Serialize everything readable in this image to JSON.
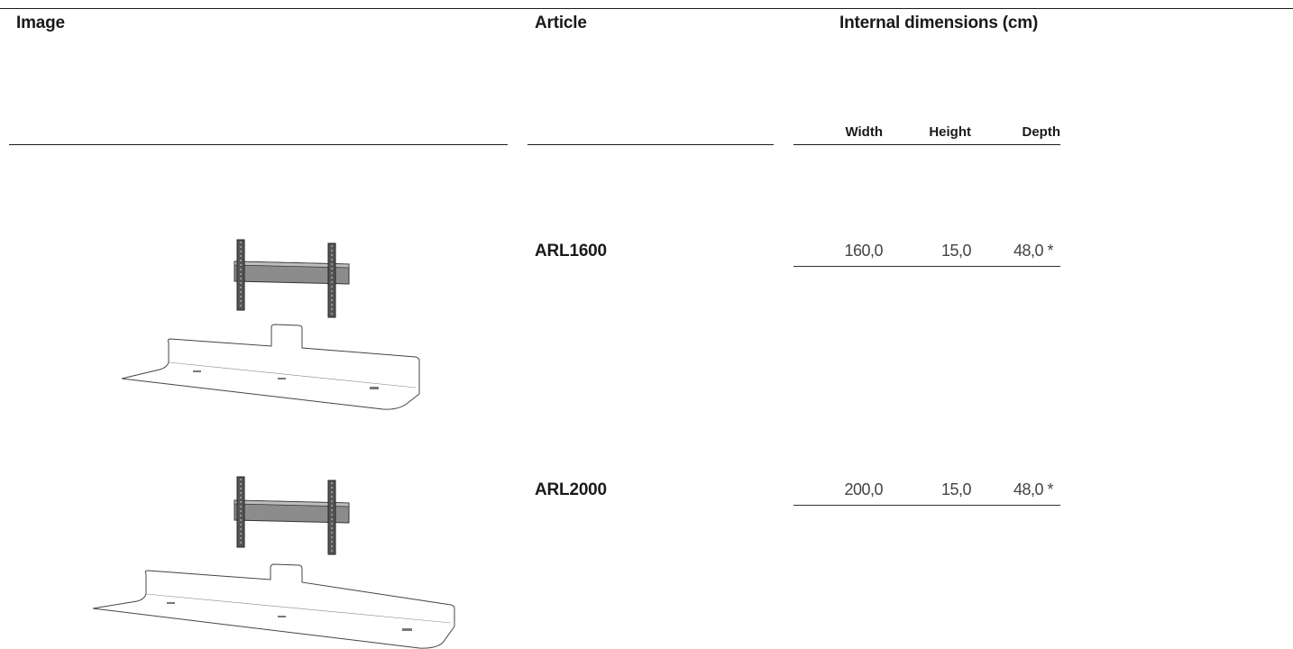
{
  "headers": {
    "image": "Image",
    "article": "Article",
    "dimensions": "Internal dimensions (cm)"
  },
  "subheaders": {
    "width": "Width",
    "height": "Height",
    "depth": "Depth"
  },
  "rows": [
    {
      "image_icon": "tv-shelf-bracket-icon",
      "article": "ARL1600",
      "width": "160,0",
      "height": "15,0",
      "depth": "48,0 *"
    },
    {
      "image_icon": "tv-shelf-bracket-icon",
      "article": "ARL2000",
      "width": "200,0",
      "height": "15,0",
      "depth": "48,0 *"
    }
  ]
}
